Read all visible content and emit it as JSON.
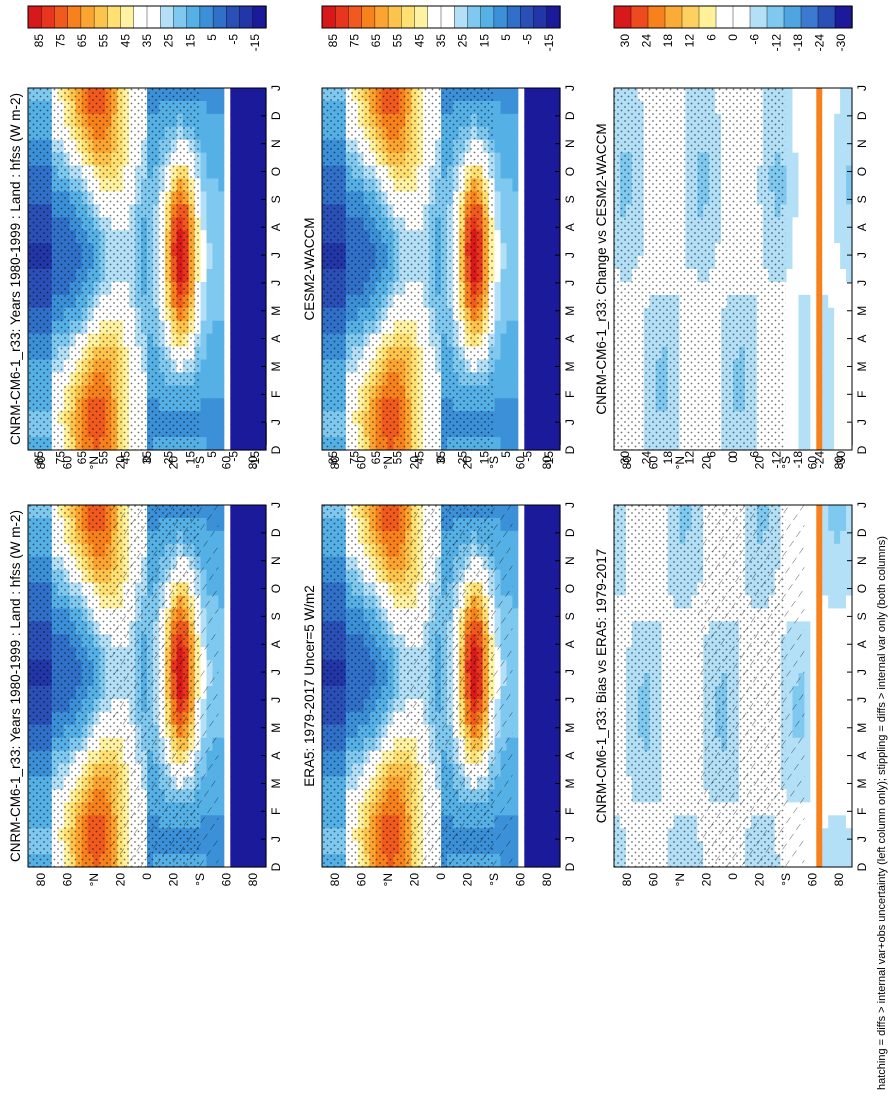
{
  "figure": {
    "footnote": "hatching = diffs > internal var+obs uncertainty (left column only); stippling = diffs > internal var only (both columns)"
  },
  "chart_data": [
    {
      "type": "heatmap",
      "id": "p1",
      "title": "CNRM-CM6-1_r33: Years 1980-1999 : Land : hfss (W m-2)",
      "x_ticks": [
        "D",
        "J",
        "F",
        "M",
        "A",
        "M",
        "J",
        "J",
        "A",
        "S",
        "O",
        "N",
        "D",
        "J"
      ],
      "y_ticks": [
        "80",
        "60",
        "°N",
        "20",
        "0",
        "20",
        "°S",
        "60",
        "80"
      ],
      "colorbar": {
        "labels": [
          "85",
          "75",
          "65",
          "55",
          "45",
          "35",
          "25",
          "15",
          "5",
          "-5",
          "-15"
        ]
      },
      "hatching": true,
      "stippling": true,
      "kind": "climatology"
    },
    {
      "type": "heatmap",
      "id": "p2",
      "title": "CNRM-CM6-1_r33: Years 1980-1999 : Land : hfss (W m-2)",
      "x_ticks": [
        "D",
        "J",
        "F",
        "M",
        "A",
        "M",
        "J",
        "J",
        "A",
        "S",
        "O",
        "N",
        "D",
        "J"
      ],
      "y_ticks": [
        "80",
        "60",
        "°N",
        "20",
        "0",
        "20",
        "°S",
        "60",
        "80"
      ],
      "colorbar": {
        "labels": [
          "85",
          "75",
          "65",
          "55",
          "45",
          "35",
          "25",
          "15",
          "5",
          "-5",
          "-15"
        ]
      },
      "hatching": false,
      "stippling": true,
      "kind": "climatology"
    },
    {
      "type": "heatmap",
      "id": "p3",
      "title": "ERA5: 1979-2017 Uncer=5 W/m2",
      "x_ticks": [
        "D",
        "J",
        "F",
        "M",
        "A",
        "M",
        "J",
        "J",
        "A",
        "S",
        "O",
        "N",
        "D",
        "J"
      ],
      "y_ticks": [
        "80",
        "60",
        "°N",
        "20",
        "0",
        "20",
        "°S",
        "60",
        "80"
      ],
      "colorbar": {
        "labels": [
          "85",
          "75",
          "65",
          "55",
          "45",
          "35",
          "25",
          "15",
          "5",
          "-5",
          "-15"
        ]
      },
      "hatching": true,
      "stippling": true,
      "kind": "climatology"
    },
    {
      "type": "heatmap",
      "id": "p4",
      "title": "CESM2-WACCM",
      "x_ticks": [
        "D",
        "J",
        "F",
        "M",
        "A",
        "M",
        "J",
        "J",
        "A",
        "S",
        "O",
        "N",
        "D",
        "J"
      ],
      "y_ticks": [
        "80",
        "60",
        "°N",
        "20",
        "0",
        "20",
        "°S",
        "60",
        "80"
      ],
      "colorbar": {
        "labels": [
          "85",
          "75",
          "65",
          "55",
          "45",
          "35",
          "25",
          "15",
          "5",
          "-5",
          "-15"
        ]
      },
      "hatching": false,
      "stippling": true,
      "kind": "climatology"
    },
    {
      "type": "heatmap",
      "id": "p5",
      "title": "CNRM-CM6-1_r33: Bias vs ERA5: 1979-2017",
      "x_ticks": [
        "D",
        "J",
        "F",
        "M",
        "A",
        "M",
        "J",
        "J",
        "A",
        "S",
        "O",
        "N",
        "D",
        "J"
      ],
      "y_ticks": [
        "80",
        "60",
        "°N",
        "20",
        "0",
        "20",
        "°S",
        "60",
        "80"
      ],
      "colorbar": {
        "labels": [
          "30",
          "24",
          "18",
          "12",
          "6",
          "0",
          "-6",
          "-12",
          "-18",
          "-24",
          "-30"
        ]
      },
      "hatching": true,
      "stippling": true,
      "kind": "difference"
    },
    {
      "type": "heatmap",
      "id": "p6",
      "title": "CNRM-CM6-1_r33: Change vs CESM2-WACCM",
      "x_ticks": [
        "D",
        "J",
        "F",
        "M",
        "A",
        "M",
        "J",
        "J",
        "A",
        "S",
        "O",
        "N",
        "D",
        "J"
      ],
      "y_ticks": [
        "80",
        "60",
        "°N",
        "20",
        "0",
        "20",
        "°S",
        "60",
        "80"
      ],
      "colorbar": {
        "labels": [
          "30",
          "24",
          "18",
          "12",
          "6",
          "0",
          "-6",
          "-12",
          "-18",
          "-24",
          "-30"
        ]
      },
      "hatching": false,
      "stippling": true,
      "kind": "difference"
    }
  ],
  "colors": {
    "clim_scale": [
      "#d7191c",
      "#e8361e",
      "#f05a1f",
      "#f7811d",
      "#fba431",
      "#fdc44d",
      "#fee172",
      "#fff3a3",
      "#ffffff",
      "#ffffff",
      "#b3e0f7",
      "#7fc9f0",
      "#55b0e6",
      "#3b90d8",
      "#3070c8",
      "#2a50b8",
      "#2236a8",
      "#1a1a9a"
    ],
    "diff_scale": [
      "#d7191c",
      "#ed4a1f",
      "#f7811d",
      "#fbac36",
      "#fed060",
      "#fff09a",
      "#ffffff",
      "#ffffff",
      "#b3e0f7",
      "#7fc9f0",
      "#4fa5e0",
      "#3b7ad0",
      "#2a50b8",
      "#1a1a9a"
    ]
  }
}
